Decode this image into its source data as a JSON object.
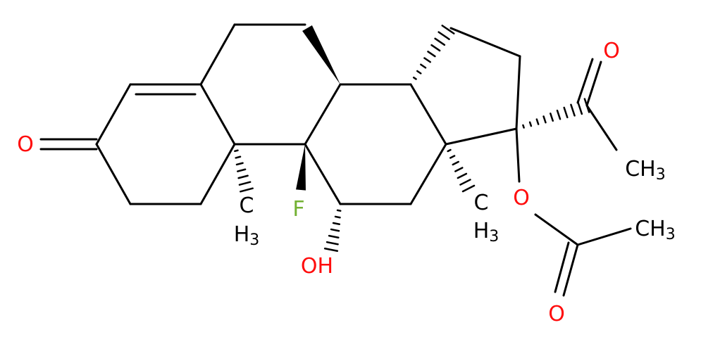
{
  "labels": [
    {
      "text": "O"
    },
    {
      "text": "F"
    },
    {
      "text": "OH"
    },
    {
      "text": "C"
    },
    {
      "text": "H",
      "sub": "3"
    },
    {
      "text": "C"
    },
    {
      "text": "H",
      "sub": "3"
    },
    {
      "text": "O"
    },
    {
      "text": "O"
    },
    {
      "text": "CH",
      "sub": "3"
    },
    {
      "text": "CH",
      "sub": "3"
    },
    {
      "text": "O"
    }
  ]
}
